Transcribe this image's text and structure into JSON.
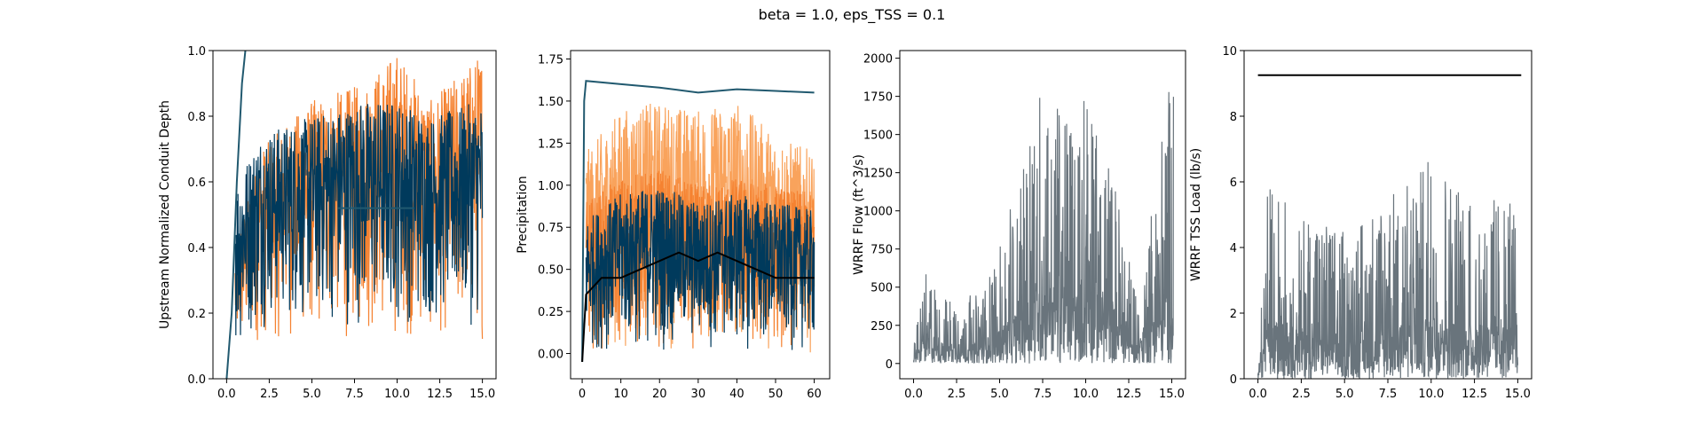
{
  "figure_title": "beta = 1.0, eps_TSS = 0.1",
  "colors": {
    "orange": "#f58231",
    "orange_light": "#f9a35c",
    "navy": "#003a5c",
    "teal": "#21596f",
    "gray": "#69747c",
    "black": "#000000"
  },
  "chart_data": [
    {
      "type": "line",
      "ylabel": "Upstream Normalized Conduit Depth",
      "xlabel": "",
      "xlim": [
        -0.8,
        15.8
      ],
      "ylim": [
        0,
        1
      ],
      "xticks": [
        "0.0",
        "2.5",
        "5.0",
        "7.5",
        "10.0",
        "12.5",
        "15.0"
      ],
      "yticks": [
        "0.0",
        "0.2",
        "0.4",
        "0.6",
        "0.8",
        "1.0"
      ],
      "series": [
        {
          "color": "orange",
          "style": "band",
          "values": [
            [
              0.5,
              0.05,
              0.4
            ],
            [
              2,
              0.1,
              0.7
            ],
            [
              5,
              0.1,
              0.85
            ],
            [
              8,
              0.1,
              0.9
            ],
            [
              10,
              0.1,
              1.0
            ],
            [
              12,
              0.1,
              0.85
            ],
            [
              15,
              0.1,
              1.0
            ]
          ]
        },
        {
          "color": "navy",
          "style": "band",
          "values": [
            [
              0.5,
              0.05,
              0.6
            ],
            [
              2,
              0.15,
              0.75
            ],
            [
              5,
              0.15,
              0.8
            ],
            [
              8,
              0.15,
              0.85
            ],
            [
              10,
              0.15,
              0.85
            ],
            [
              12,
              0.15,
              0.8
            ],
            [
              15,
              0.15,
              0.85
            ]
          ]
        },
        {
          "color": "teal",
          "style": "line",
          "values": [
            [
              0,
              0.0
            ],
            [
              0.3,
              0.2
            ],
            [
              0.6,
              0.6
            ],
            [
              0.9,
              0.9
            ],
            [
              1.1,
              1.0
            ]
          ]
        },
        {
          "color": "teal",
          "style": "line",
          "values": [
            [
              6.5,
              0.52
            ],
            [
              11,
              0.52
            ]
          ]
        }
      ]
    },
    {
      "type": "line",
      "ylabel": "Precipitation",
      "xlabel": "",
      "xlim": [
        -3,
        64
      ],
      "ylim": [
        -0.15,
        1.8
      ],
      "xticks": [
        "0",
        "10",
        "20",
        "30",
        "40",
        "50",
        "60"
      ],
      "yticks": [
        "0.00",
        "0.25",
        "0.50",
        "0.75",
        "1.00",
        "1.25",
        "1.50",
        "1.75"
      ],
      "series": [
        {
          "color": "orange_light",
          "style": "band",
          "values": [
            [
              1,
              0.0,
              1.2
            ],
            [
              10,
              0.0,
              1.45
            ],
            [
              20,
              0.0,
              1.5
            ],
            [
              30,
              0.0,
              1.45
            ],
            [
              40,
              0.0,
              1.5
            ],
            [
              50,
              0.0,
              1.3
            ],
            [
              60,
              0.0,
              1.2
            ]
          ]
        },
        {
          "color": "orange",
          "style": "band",
          "values": [
            [
              1,
              0.0,
              0.9
            ],
            [
              10,
              0.0,
              1.05
            ],
            [
              20,
              0.0,
              1.1
            ],
            [
              30,
              0.0,
              1.0
            ],
            [
              40,
              0.0,
              1.05
            ],
            [
              50,
              0.0,
              1.0
            ],
            [
              60,
              0.0,
              0.95
            ]
          ]
        },
        {
          "color": "navy",
          "style": "band",
          "values": [
            [
              1,
              0.0,
              0.8
            ],
            [
              10,
              0.0,
              0.95
            ],
            [
              20,
              0.0,
              1.0
            ],
            [
              30,
              0.0,
              0.9
            ],
            [
              40,
              0.0,
              0.95
            ],
            [
              50,
              0.0,
              0.9
            ],
            [
              60,
              0.0,
              0.85
            ]
          ]
        },
        {
          "color": "teal",
          "style": "line",
          "values": [
            [
              0,
              -0.05
            ],
            [
              0.5,
              1.5
            ],
            [
              1,
              1.62
            ],
            [
              10,
              1.6
            ],
            [
              20,
              1.58
            ],
            [
              30,
              1.55
            ],
            [
              40,
              1.57
            ],
            [
              50,
              1.56
            ],
            [
              60,
              1.55
            ]
          ]
        },
        {
          "color": "black",
          "style": "line",
          "values": [
            [
              0,
              -0.05
            ],
            [
              1,
              0.35
            ],
            [
              5,
              0.45
            ],
            [
              10,
              0.45
            ],
            [
              15,
              0.5
            ],
            [
              20,
              0.55
            ],
            [
              25,
              0.6
            ],
            [
              30,
              0.55
            ],
            [
              35,
              0.6
            ],
            [
              40,
              0.55
            ],
            [
              45,
              0.5
            ],
            [
              50,
              0.45
            ],
            [
              55,
              0.45
            ],
            [
              60,
              0.45
            ]
          ]
        }
      ]
    },
    {
      "type": "line",
      "ylabel": "WRRF Flow (ft^3/s)",
      "xlabel": "",
      "xlim": [
        -0.8,
        15.8
      ],
      "ylim": [
        -100,
        2050
      ],
      "xticks": [
        "0.0",
        "2.5",
        "5.0",
        "7.5",
        "10.0",
        "12.5",
        "15.0"
      ],
      "yticks": [
        "0",
        "250",
        "500",
        "750",
        "1000",
        "1250",
        "1500",
        "1750",
        "2000"
      ],
      "series": [
        {
          "color": "gray",
          "style": "spiky",
          "values": [
            [
              0,
              100
            ],
            [
              0.6,
              600
            ],
            [
              2,
              450
            ],
            [
              4,
              450
            ],
            [
              6.6,
              1350
            ],
            [
              6.8,
              1870
            ],
            [
              9.5,
              1600
            ],
            [
              9.8,
              1870
            ],
            [
              10.1,
              1910
            ],
            [
              10.5,
              1830
            ],
            [
              11,
              1600
            ],
            [
              13,
              450
            ],
            [
              14.8,
              1810
            ],
            [
              15.1,
              1950
            ]
          ]
        }
      ]
    },
    {
      "type": "line",
      "ylabel": "WRRF TSS Load (lb/s)",
      "xlabel": "",
      "xlim": [
        -0.8,
        15.8
      ],
      "ylim": [
        0,
        10
      ],
      "xticks": [
        "0.0",
        "2.5",
        "5.0",
        "7.5",
        "10.0",
        "12.5",
        "15.0"
      ],
      "yticks": [
        "0",
        "2",
        "4",
        "6",
        "8",
        "10"
      ],
      "series": [
        {
          "color": "gray",
          "style": "spiky",
          "values": [
            [
              0,
              1.0
            ],
            [
              0.6,
              6.0
            ],
            [
              2,
              5.3
            ],
            [
              5,
              4.5
            ],
            [
              6.5,
              5.2
            ],
            [
              9.3,
              6.3
            ],
            [
              10,
              6.9
            ],
            [
              12.5,
              5.5
            ],
            [
              15,
              5.6
            ]
          ]
        },
        {
          "color": "black",
          "style": "line",
          "values": [
            [
              0,
              9.25
            ],
            [
              15.2,
              9.25
            ]
          ]
        }
      ]
    }
  ]
}
